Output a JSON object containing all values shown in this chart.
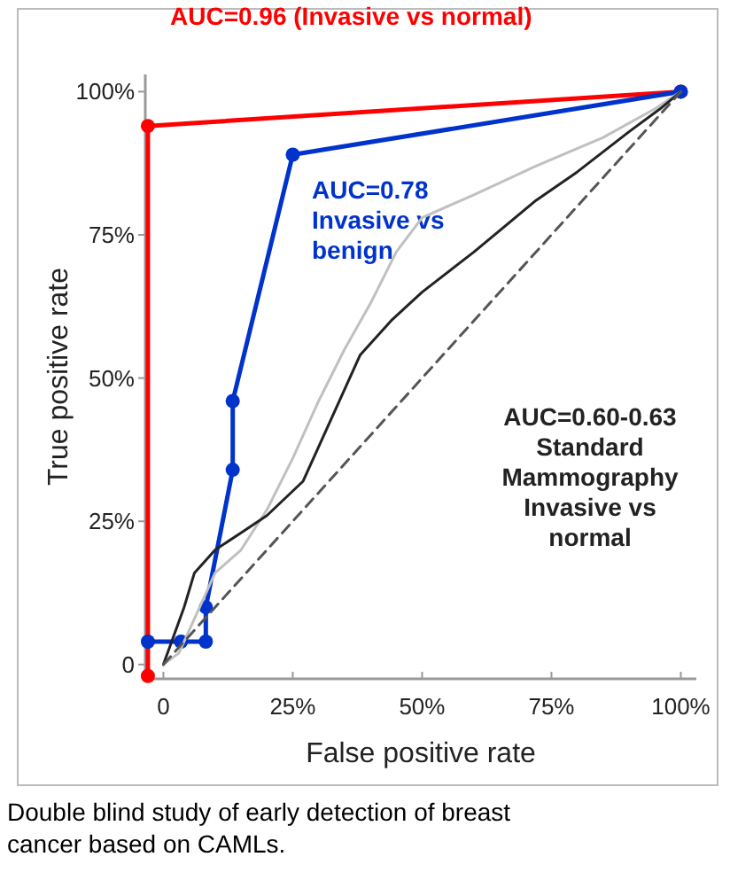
{
  "chart_data": {
    "type": "line",
    "xlabel": "False positive rate",
    "ylabel": "True positive rate",
    "xlim": [
      -3.5,
      103
    ],
    "ylim": [
      -2.5,
      103
    ],
    "xticks": [
      {
        "value": 0,
        "label": "0"
      },
      {
        "value": 25,
        "label": "25%"
      },
      {
        "value": 50,
        "label": "50%"
      },
      {
        "value": 75,
        "label": "75%"
      },
      {
        "value": 100,
        "label": "100%"
      }
    ],
    "yticks": [
      {
        "value": 0,
        "label": "0"
      },
      {
        "value": 25,
        "label": "25%"
      },
      {
        "value": 50,
        "label": "50%"
      },
      {
        "value": 75,
        "label": "75%"
      },
      {
        "value": 100,
        "label": "100%"
      }
    ],
    "grid": false,
    "series": [
      {
        "name": "AUC=0.96 (Invasive vs normal)",
        "color": "#ff0000",
        "marker": "circle",
        "x": [
          -3,
          -3,
          100
        ],
        "values": [
          -2,
          94,
          100
        ]
      },
      {
        "name": "AUC=0.78 Invasive vs benign",
        "color": "#0033cc",
        "marker": "circle",
        "x": [
          -3,
          3.4,
          8.2,
          8.2,
          13.4,
          13.4,
          25,
          100
        ],
        "values": [
          4,
          4,
          4,
          10,
          34,
          46,
          89,
          100
        ]
      },
      {
        "color": "#c0c0c0",
        "marker": "none",
        "x": [
          0,
          3,
          6,
          10,
          15,
          20,
          25,
          30,
          35,
          40,
          45,
          50,
          60,
          72,
          85,
          95,
          100
        ],
        "values": [
          0,
          2,
          8,
          16,
          20,
          27,
          36,
          46,
          55,
          63,
          72,
          78,
          82,
          87,
          92,
          97,
          100
        ]
      },
      {
        "name": "AUC=0.60-0.63 Standard Mammography Invasive vs normal",
        "color": "#222222",
        "marker": "none",
        "x": [
          0,
          2,
          4,
          6,
          10,
          15,
          20,
          27,
          32,
          38,
          44,
          50,
          60,
          72,
          80,
          90,
          96,
          100
        ],
        "values": [
          0,
          5,
          10,
          16,
          20,
          23,
          26,
          32,
          42,
          54,
          60,
          65,
          72,
          81,
          86,
          93,
          97,
          100
        ]
      },
      {
        "color": "#555555",
        "marker": "none",
        "line_style": "dashed",
        "x": [
          0,
          100
        ],
        "values": [
          0,
          100
        ]
      }
    ],
    "annotations": [
      "Double blind study of early detection of breast cancer based on CAMLs."
    ]
  }
}
